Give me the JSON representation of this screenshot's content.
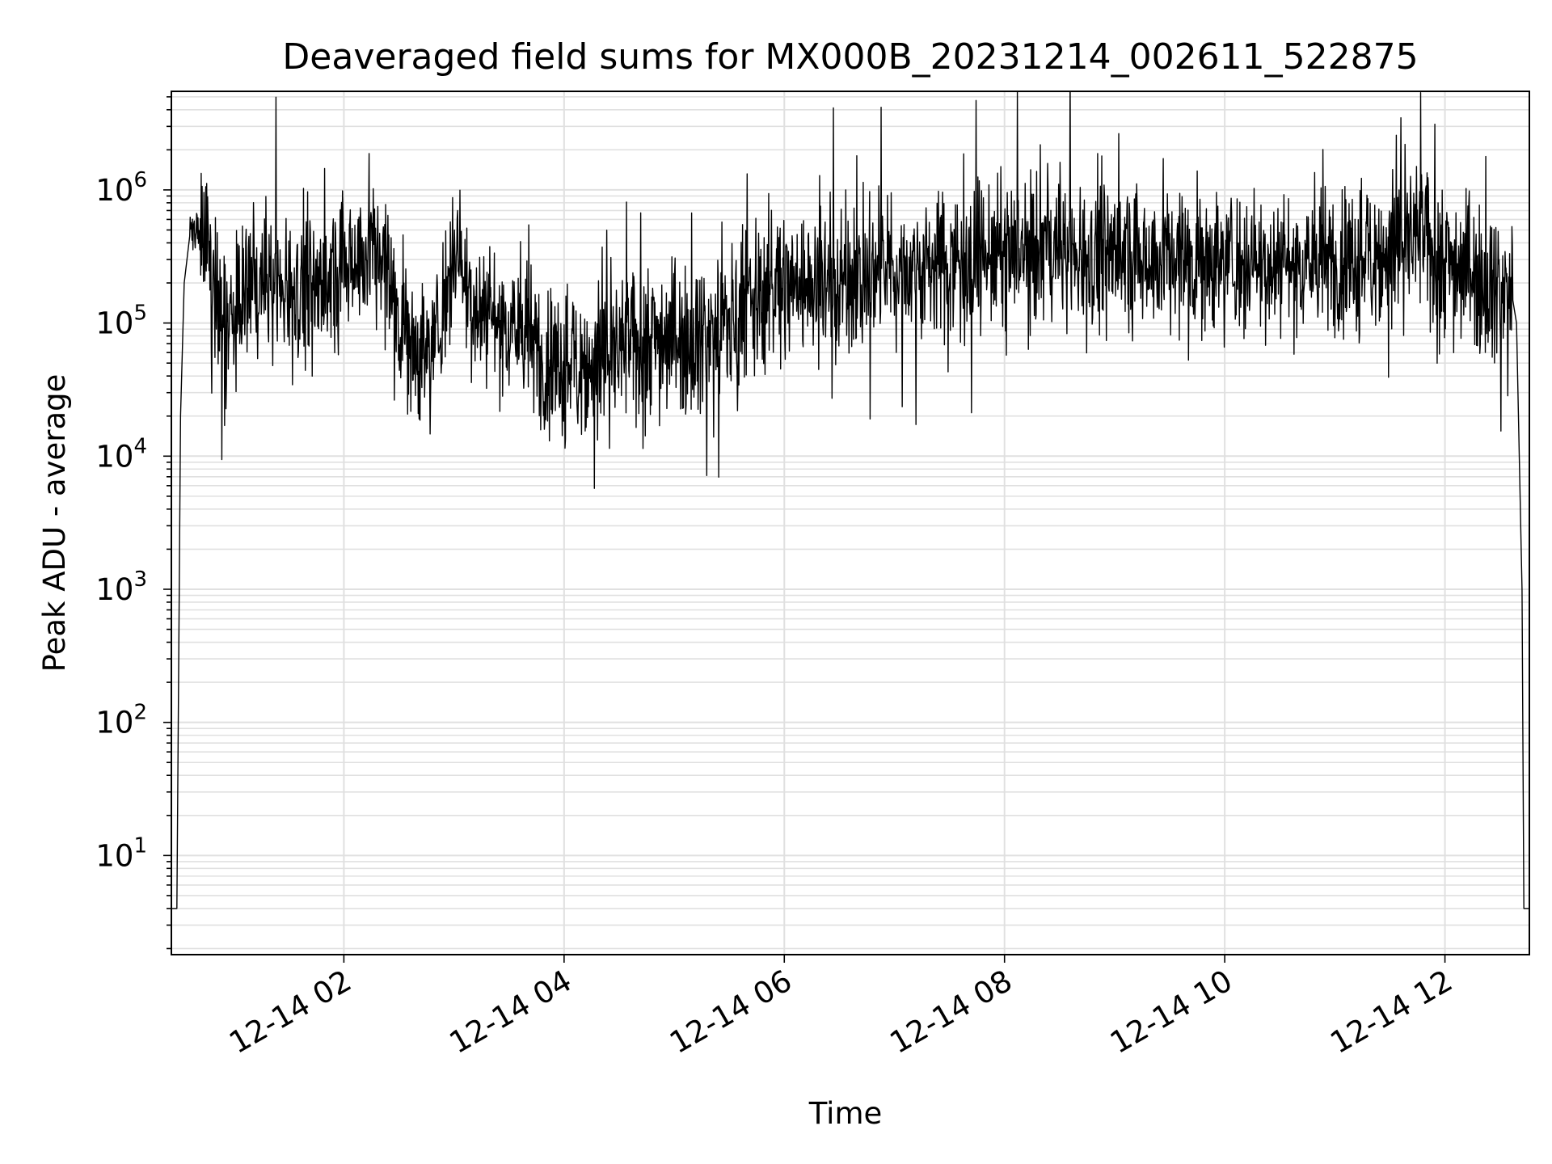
{
  "chart_data": {
    "type": "line",
    "title": "Deaveraged field sums for MX000B_20231214_002611_522875",
    "xlabel": "Time",
    "ylabel": "Peak ADU - average",
    "yscale": "log",
    "xlim": [
      "2023-12-14T00:26",
      "2023-12-14T12:46"
    ],
    "ylim": [
      1.8,
      5500000
    ],
    "grid": true,
    "grid_which": "both",
    "line_color": "#000000",
    "grid_color": "#e0e0e0",
    "x_ticks": [
      {
        "value": "2023-12-14T02:00",
        "label": "12-14 02"
      },
      {
        "value": "2023-12-14T04:00",
        "label": "12-14 04"
      },
      {
        "value": "2023-12-14T06:00",
        "label": "12-14 06"
      },
      {
        "value": "2023-12-14T08:00",
        "label": "12-14 08"
      },
      {
        "value": "2023-12-14T10:00",
        "label": "12-14 10"
      },
      {
        "value": "2023-12-14T12:00",
        "label": "12-14 12"
      }
    ],
    "y_ticks": [
      {
        "value": 10,
        "base": "10",
        "exp": "1"
      },
      {
        "value": 100,
        "base": "10",
        "exp": "2"
      },
      {
        "value": 1000,
        "base": "10",
        "exp": "3"
      },
      {
        "value": 10000,
        "base": "10",
        "exp": "4"
      },
      {
        "value": 100000,
        "base": "10",
        "exp": "5"
      },
      {
        "value": 1000000,
        "base": "10",
        "exp": "6"
      }
    ],
    "series": [
      {
        "x": [
          "2023-12-14T00:26",
          "2023-12-14T00:29",
          "2023-12-14T00:31",
          "2023-12-14T00:33",
          "2023-12-14T00:36",
          "2023-12-14T00:40",
          "2023-12-14T00:46",
          "2023-12-14T00:52",
          "2023-12-14T00:58",
          "2023-12-14T01:05",
          "2023-12-14T01:12",
          "2023-12-14T01:20",
          "2023-12-14T01:30",
          "2023-12-14T01:40",
          "2023-12-14T01:50",
          "2023-12-14T02:00",
          "2023-12-14T02:10",
          "2023-12-14T02:20",
          "2023-12-14T02:30",
          "2023-12-14T02:40",
          "2023-12-14T02:50",
          "2023-12-14T03:00",
          "2023-12-14T03:10",
          "2023-12-14T03:20",
          "2023-12-14T03:30",
          "2023-12-14T03:40",
          "2023-12-14T03:50",
          "2023-12-14T04:00",
          "2023-12-14T04:15",
          "2023-12-14T04:30",
          "2023-12-14T04:45",
          "2023-12-14T05:00",
          "2023-12-14T05:15",
          "2023-12-14T05:30",
          "2023-12-14T05:45",
          "2023-12-14T06:00",
          "2023-12-14T06:30",
          "2023-12-14T07:00",
          "2023-12-14T07:30",
          "2023-12-14T08:00",
          "2023-12-14T08:30",
          "2023-12-14T09:00",
          "2023-12-14T09:30",
          "2023-12-14T10:00",
          "2023-12-14T10:30",
          "2023-12-14T11:00",
          "2023-12-14T11:30",
          "2023-12-14T11:45",
          "2023-12-14T12:00",
          "2023-12-14T12:15",
          "2023-12-14T12:25",
          "2023-12-14T12:30",
          "2023-12-14T12:36",
          "2023-12-14T12:39",
          "2023-12-14T12:42",
          "2023-12-14T12:43",
          "2023-12-14T12:46"
        ],
        "y": [
          4,
          4,
          20000,
          200000,
          450000,
          550000,
          380000,
          100000,
          90000,
          150000,
          180000,
          200000,
          200000,
          180000,
          180000,
          300000,
          350000,
          350000,
          120000,
          60000,
          70000,
          400000,
          150000,
          120000,
          100000,
          80000,
          50000,
          50000,
          50000,
          60000,
          80000,
          80000,
          80000,
          100000,
          150000,
          200000,
          200000,
          250000,
          300000,
          320000,
          350000,
          330000,
          320000,
          300000,
          300000,
          280000,
          350000,
          450000,
          300000,
          250000,
          200000,
          180000,
          180000,
          100000,
          1000,
          4,
          4
        ]
      }
    ]
  }
}
